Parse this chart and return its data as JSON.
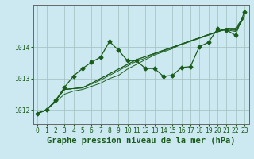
{
  "title": "Graphe pression niveau de la mer (hPa)",
  "background_color": "#cce8f0",
  "line_color": "#1a5c1a",
  "grid_color": "#9fbfbf",
  "xlim": [
    -0.5,
    23.5
  ],
  "ylim": [
    1011.55,
    1015.35
  ],
  "yticks": [
    1012,
    1013,
    1014
  ],
  "xticks": [
    0,
    1,
    2,
    3,
    4,
    5,
    6,
    7,
    8,
    9,
    10,
    11,
    12,
    13,
    14,
    15,
    16,
    17,
    18,
    19,
    20,
    21,
    22,
    23
  ],
  "series": [
    [
      1011.9,
      1012.0,
      1012.3,
      1012.65,
      1012.68,
      1012.7,
      1012.85,
      1013.0,
      1013.15,
      1013.3,
      1013.45,
      1013.6,
      1013.7,
      1013.8,
      1013.9,
      1014.0,
      1014.1,
      1014.2,
      1014.3,
      1014.4,
      1014.5,
      1014.6,
      1014.6,
      1015.0
    ],
    [
      1011.9,
      1012.0,
      1012.3,
      1012.65,
      1012.68,
      1012.7,
      1012.85,
      1013.0,
      1013.15,
      1013.3,
      1013.45,
      1013.6,
      1013.7,
      1013.8,
      1013.9,
      1014.0,
      1014.1,
      1014.2,
      1014.3,
      1014.4,
      1014.5,
      1014.6,
      1014.55,
      1015.0
    ],
    [
      1011.9,
      1012.0,
      1012.25,
      1012.5,
      1012.6,
      1012.65,
      1012.75,
      1012.85,
      1013.0,
      1013.1,
      1013.3,
      1013.45,
      1013.6,
      1013.75,
      1013.85,
      1013.95,
      1014.1,
      1014.2,
      1014.3,
      1014.4,
      1014.5,
      1014.55,
      1014.5,
      1014.95
    ],
    [
      1011.88,
      1012.0,
      1012.3,
      1012.65,
      1012.68,
      1012.72,
      1012.82,
      1012.95,
      1013.1,
      1013.25,
      1013.4,
      1013.55,
      1013.65,
      1013.78,
      1013.88,
      1013.98,
      1014.08,
      1014.18,
      1014.28,
      1014.38,
      1014.48,
      1014.58,
      1014.53,
      1014.97
    ]
  ],
  "main_series": [
    1011.88,
    1012.0,
    1012.3,
    1012.72,
    1013.08,
    1013.32,
    1013.52,
    1013.68,
    1014.18,
    1013.9,
    1013.57,
    1013.57,
    1013.32,
    1013.32,
    1013.07,
    1013.1,
    1013.35,
    1013.38,
    1014.02,
    1014.15,
    1014.58,
    1014.55,
    1014.38,
    1015.12
  ],
  "marker": "D",
  "marker_size": 2.5,
  "line_width": 0.9,
  "title_fontsize": 7.5,
  "tick_fontsize": 5.8
}
